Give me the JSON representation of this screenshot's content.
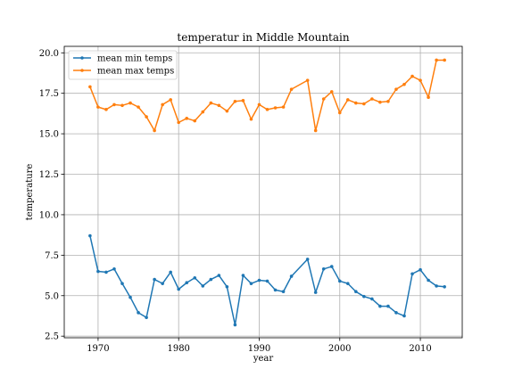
{
  "chart_data": {
    "type": "line",
    "title": "temperatur in Middle Mountain",
    "xlabel": "year",
    "ylabel": "temperature",
    "xlim": [
      1965.8,
      2015.2
    ],
    "ylim": [
      2.4,
      20.4
    ],
    "xticks": [
      1970,
      1980,
      1990,
      2000,
      2010
    ],
    "yticks": [
      2.5,
      5.0,
      7.5,
      10.0,
      12.5,
      15.0,
      17.5,
      20.0
    ],
    "xtick_labels": [
      "1970",
      "1980",
      "1990",
      "2000",
      "2010"
    ],
    "ytick_labels": [
      "2.5",
      "5.0",
      "7.5",
      "10.0",
      "12.5",
      "15.0",
      "17.5",
      "20.0"
    ],
    "grid": true,
    "legend_position": "top-left",
    "x": [
      1969,
      1970,
      1971,
      1972,
      1973,
      1974,
      1975,
      1976,
      1977,
      1978,
      1979,
      1980,
      1981,
      1982,
      1983,
      1984,
      1985,
      1986,
      1987,
      1988,
      1989,
      1990,
      1991,
      1992,
      1993,
      1994,
      1996,
      1997,
      1998,
      1999,
      2000,
      2001,
      2002,
      2003,
      2004,
      2005,
      2006,
      2007,
      2008,
      2009,
      2010,
      2011,
      2012,
      2013
    ],
    "series": [
      {
        "name": "mean min temps",
        "color": "#1f77b4",
        "values": [
          8.7,
          6.5,
          6.45,
          6.65,
          5.75,
          4.9,
          3.95,
          3.65,
          6.0,
          5.75,
          6.45,
          5.4,
          5.8,
          6.1,
          5.6,
          6.0,
          6.25,
          5.55,
          3.2,
          6.25,
          5.75,
          5.95,
          5.9,
          5.35,
          5.25,
          6.2,
          7.25,
          5.2,
          6.65,
          6.8,
          5.9,
          5.75,
          5.25,
          4.95,
          4.8,
          4.35,
          4.35,
          3.95,
          3.75,
          6.35,
          6.6,
          5.95,
          5.6,
          5.55
        ]
      },
      {
        "name": "mean max temps",
        "color": "#ff7f0e",
        "values": [
          17.9,
          16.65,
          16.5,
          16.8,
          16.75,
          16.9,
          16.65,
          16.05,
          15.2,
          16.8,
          17.1,
          15.7,
          15.95,
          15.8,
          16.35,
          16.9,
          16.75,
          16.4,
          17.0,
          17.05,
          15.9,
          16.8,
          16.5,
          16.6,
          16.65,
          17.75,
          18.3,
          15.2,
          17.15,
          17.6,
          16.3,
          17.1,
          16.9,
          16.85,
          17.15,
          16.95,
          17.0,
          17.75,
          18.05,
          18.55,
          18.3,
          17.25,
          19.55,
          19.55
        ]
      }
    ]
  }
}
